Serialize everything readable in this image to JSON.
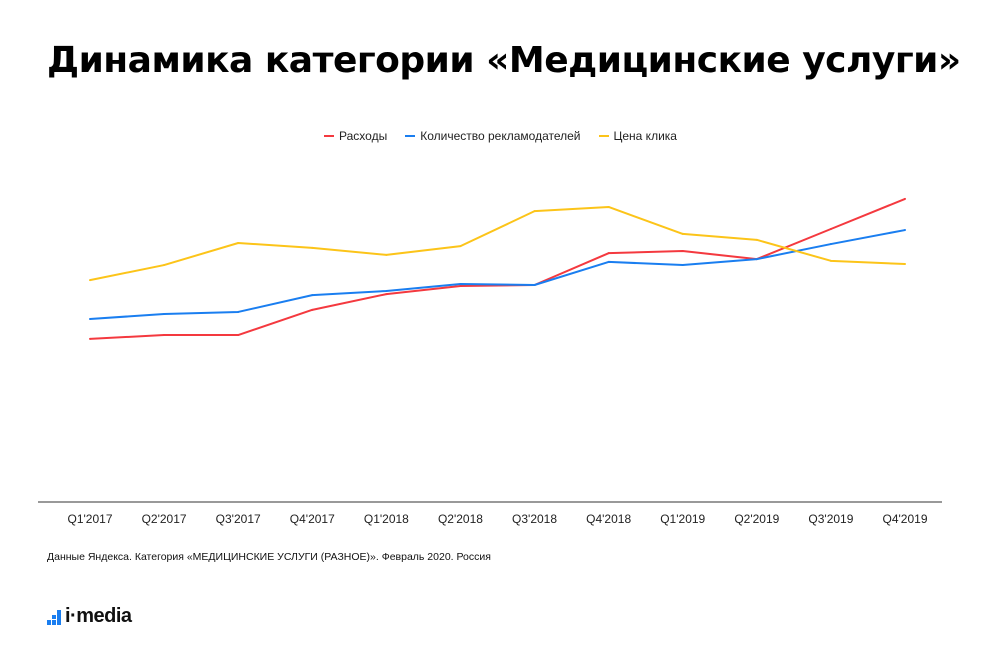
{
  "title": "Динамика категории «Медицинские услуги»",
  "source": "Данные Яндекса. Категория «МЕДИЦИНСКИЕ УСЛУГИ (РАЗНОЕ)». Февраль 2020. Россия",
  "logo": "i·media",
  "chart_data": {
    "type": "line",
    "title": "Динамика категории «Медицинские услуги»",
    "xlabel": "",
    "ylabel": "",
    "ylim": [
      0,
      100
    ],
    "grid": false,
    "legend_position": "top-center",
    "categories": [
      "Q1'2017",
      "Q2'2017",
      "Q3'2017",
      "Q4'2017",
      "Q1'2018",
      "Q2'2018",
      "Q3'2018",
      "Q4'2018",
      "Q1'2019",
      "Q2'2019",
      "Q3'2019",
      "Q4'2019"
    ],
    "series": [
      {
        "name": "Расходы",
        "color": "#f4393f",
        "values": [
          46.6,
          47.7,
          47.7,
          54.9,
          59.4,
          61.7,
          62.0,
          71.1,
          71.7,
          69.4,
          78.0,
          86.6
        ]
      },
      {
        "name": "Количество рекламодателей",
        "color": "#1a7ef0",
        "values": [
          52.3,
          53.7,
          54.3,
          59.1,
          60.3,
          62.3,
          62.0,
          68.6,
          67.7,
          69.4,
          73.7,
          77.7
        ]
      },
      {
        "name": "Цена клика",
        "color": "#fcc419",
        "values": [
          63.4,
          67.7,
          74.0,
          72.6,
          70.6,
          73.1,
          83.1,
          84.3,
          76.6,
          74.9,
          68.9,
          68.0
        ]
      }
    ]
  }
}
